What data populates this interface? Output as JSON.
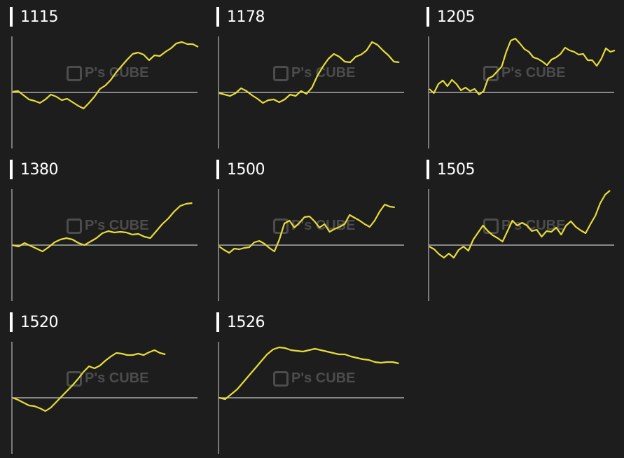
{
  "watermark": "P's CUBE",
  "colors": {
    "line": "#e6dc3a",
    "axis": "#9a9a9a",
    "background": "#1d1d1d"
  },
  "chart_data": [
    {
      "type": "line",
      "title": "1115",
      "ylim": [
        -80,
        80
      ],
      "xlim": [
        0,
        34
      ],
      "baseline": 0,
      "values": [
        1,
        2,
        -4,
        -10,
        -12,
        -15,
        -10,
        -3,
        -6,
        -11,
        -9,
        -14,
        -19,
        -23,
        -15,
        -6,
        5,
        10,
        18,
        29,
        38,
        47,
        55,
        57,
        54,
        46,
        53,
        52,
        58,
        63,
        70,
        72,
        69,
        69,
        65
      ]
    },
    {
      "type": "line",
      "title": "1178",
      "ylim": [
        -80,
        80
      ],
      "xlim": [
        0,
        34
      ],
      "baseline": 0,
      "values": [
        -1,
        -3,
        -5,
        -1,
        6,
        2,
        -4,
        -9,
        -15,
        -11,
        -10,
        -14,
        -10,
        -3,
        -5,
        2,
        -2,
        7,
        24,
        37,
        48,
        55,
        51,
        44,
        43,
        51,
        54,
        60,
        72,
        68,
        60,
        53,
        44,
        43
      ]
    },
    {
      "type": "line",
      "title": "1205",
      "ylim": [
        -80,
        80
      ],
      "xlim": [
        0,
        41
      ],
      "baseline": 0,
      "values": [
        5,
        -1,
        12,
        17,
        9,
        18,
        12,
        3,
        7,
        2,
        5,
        -3,
        2,
        20,
        23,
        30,
        37,
        58,
        74,
        77,
        70,
        62,
        58,
        50,
        48,
        44,
        39,
        47,
        50,
        55,
        64,
        60,
        58,
        54,
        55,
        46,
        46,
        38,
        48,
        63,
        58,
        60
      ]
    },
    {
      "type": "line",
      "title": "1380",
      "ylim": [
        -80,
        80
      ],
      "xlim": [
        0,
        31
      ],
      "baseline": 0,
      "values": [
        0,
        -2,
        3,
        -1,
        -5,
        -9,
        -3,
        4,
        8,
        10,
        8,
        3,
        0,
        5,
        10,
        17,
        20,
        18,
        19,
        18,
        15,
        16,
        12,
        10,
        20,
        30,
        38,
        48,
        56,
        59,
        60
      ]
    },
    {
      "type": "line",
      "title": "1500",
      "ylim": [
        -80,
        80
      ],
      "xlim": [
        0,
        37
      ],
      "baseline": 0,
      "values": [
        -2,
        -7,
        -11,
        -5,
        -6,
        -4,
        -3,
        4,
        6,
        2,
        -4,
        -9,
        8,
        31,
        35,
        25,
        32,
        40,
        41,
        34,
        25,
        30,
        19,
        23,
        26,
        30,
        43,
        39,
        35,
        30,
        26,
        35,
        48,
        58,
        55,
        54
      ]
    },
    {
      "type": "line",
      "title": "1505",
      "ylim": [
        -80,
        80
      ],
      "xlim": [
        0,
        38
      ],
      "baseline": 0,
      "values": [
        -2,
        -6,
        -13,
        -18,
        -12,
        -18,
        -7,
        -2,
        -8,
        8,
        18,
        28,
        20,
        14,
        10,
        5,
        20,
        35,
        28,
        32,
        28,
        20,
        22,
        12,
        20,
        19,
        25,
        15,
        28,
        34,
        26,
        21,
        17,
        30,
        42,
        60,
        72,
        78
      ]
    },
    {
      "type": "line",
      "title": "1520",
      "ylim": [
        -80,
        80
      ],
      "xlim": [
        0,
        34
      ],
      "baseline": 0,
      "values": [
        0,
        -3,
        -7,
        -11,
        -12,
        -15,
        -19,
        -14,
        -6,
        2,
        10,
        18,
        27,
        37,
        45,
        42,
        46,
        53,
        59,
        64,
        63,
        61,
        61,
        63,
        61,
        65,
        68,
        64,
        62
      ]
    },
    {
      "type": "line",
      "title": "1526",
      "ylim": [
        -80,
        80
      ],
      "xlim": [
        0,
        31
      ],
      "baseline": 0,
      "values": [
        0,
        -2,
        5,
        12,
        22,
        32,
        42,
        52,
        62,
        69,
        72,
        71,
        68,
        67,
        66,
        68,
        70,
        68,
        66,
        64,
        62,
        62,
        59,
        57,
        55,
        54,
        51,
        50,
        51,
        51,
        49
      ]
    }
  ]
}
